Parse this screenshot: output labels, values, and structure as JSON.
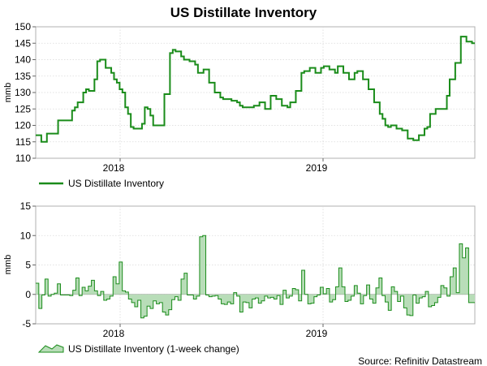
{
  "chart_data": [
    {
      "type": "line",
      "title": "US Distillate Inventory",
      "xlabel": "",
      "ylabel": "mmb",
      "ylim": [
        110,
        150
      ],
      "yticks": [
        110,
        115,
        120,
        125,
        130,
        135,
        140,
        145,
        150
      ],
      "x_tick_labels": [
        "2018",
        "2019"
      ],
      "grid": true,
      "legend": "bottom-left",
      "series": [
        {
          "name": "US Distillate Inventory",
          "color": "#1a8c1a",
          "values": [
            117,
            117,
            115,
            115,
            117.5,
            117.5,
            117.5,
            117.5,
            121.5,
            121.5,
            121.5,
            121.5,
            121.5,
            124.5,
            125.5,
            127,
            127,
            130,
            131,
            130.5,
            130.5,
            134,
            139.5,
            140,
            140,
            137.5,
            137.5,
            136,
            134,
            133,
            131,
            130,
            125.5,
            123.5,
            119.5,
            119,
            119,
            119,
            120.5,
            125.5,
            125,
            123,
            120,
            120,
            120,
            120,
            129.5,
            129.5,
            142,
            143,
            142.5,
            142.5,
            141,
            140,
            140,
            139.5,
            139.5,
            138.5,
            136,
            136,
            137,
            137,
            133,
            133,
            130,
            130,
            128.5,
            128,
            128,
            128,
            127.5,
            127.5,
            127,
            126,
            125.5,
            125.5,
            125.5,
            125.5,
            126,
            126,
            127,
            127,
            125,
            125,
            129,
            129,
            128,
            128,
            126,
            126,
            125.5,
            127,
            127,
            130.5,
            130.5,
            136,
            136.5,
            136.5,
            137.5,
            137.5,
            136,
            136,
            137.5,
            138,
            138,
            137,
            137,
            136,
            138,
            138,
            136,
            136,
            134,
            134,
            136,
            136.5,
            136.5,
            134,
            134,
            131,
            131,
            127,
            127,
            123.5,
            122,
            120,
            119.5,
            120,
            120,
            119,
            119,
            118.5,
            118.5,
            116,
            116,
            115.5,
            115.5,
            117,
            117,
            119,
            119.5,
            123.5,
            123.5,
            125,
            125,
            125,
            125,
            129,
            134,
            134,
            139,
            139,
            147,
            147,
            145.5,
            145.5,
            145
          ]
        }
      ]
    },
    {
      "type": "area",
      "title": "",
      "xlabel": "",
      "ylabel": "mmb",
      "ylim": [
        -5,
        15
      ],
      "yticks": [
        -5,
        0,
        5,
        10,
        15
      ],
      "x_tick_labels": [
        "2018",
        "2019"
      ],
      "grid": true,
      "legend": "bottom-left",
      "series": [
        {
          "name": "US Distillate Inventory (1-week change)",
          "color": "#1a8c1a",
          "values": [
            1.9,
            -2.4,
            -0.1,
            2.6,
            -0.3,
            0.0,
            0.2,
            1.8,
            -0.1,
            -0.1,
            -0.1,
            -0.2,
            0.7,
            2.8,
            -0.2,
            1.2,
            0.6,
            1.4,
            2.4,
            0.6,
            -0.2,
            0.5,
            -1.0,
            -0.8,
            -0.3,
            3.0,
            1.8,
            5.5,
            0.6,
            0.4,
            -0.8,
            -1.4,
            -2.1,
            -1.0,
            -4.0,
            -3.7,
            -2.0,
            -2.4,
            -1.1,
            -1.6,
            -1.4,
            -3.0,
            -3.5,
            -2.6,
            -0.9,
            -0.4,
            -1.0,
            2.6,
            3.6,
            -0.1,
            -0.1,
            -0.8,
            -0.3,
            9.8,
            10.0,
            -0.1,
            -0.4,
            -0.3,
            -0.2,
            -0.8,
            -1.6,
            -1.7,
            -1.3,
            -1.6,
            0.3,
            -0.3,
            -3.0,
            -1.3,
            -1.4,
            -2.3,
            -0.8,
            -0.6,
            -1.5,
            -1.1,
            -0.3,
            -0.6,
            -0.5,
            -0.8,
            -0.2,
            -1.7,
            0.7,
            -0.6,
            -0.3,
            1.0,
            0.8,
            -1.1,
            4.1,
            0.0,
            -1.6,
            -1.5,
            -0.4,
            -0.1,
            1.2,
            0.1,
            1.0,
            -1.3,
            -0.9,
            1.3,
            4.5,
            1.3,
            -1.2,
            -1.0,
            -0.3,
            1.5,
            0.2,
            -1.6,
            -0.2,
            1.6,
            -0.8,
            -1.5,
            1.1,
            2.8,
            -0.2,
            -1.3,
            -2.7,
            1.3,
            0.5,
            -1.2,
            -0.3,
            -2.3,
            -3.5,
            -3.6,
            -0.1,
            -1.5,
            -0.6,
            -0.4,
            0.5,
            -2.1,
            -1.9,
            -1.4,
            -0.5,
            1.5,
            1.1,
            -0.3,
            3.0,
            4.5,
            0.3,
            8.6,
            6.2,
            7.9,
            -1.4,
            -1.4
          ]
        }
      ]
    }
  ],
  "source": "Source: Refinitiv Datastream"
}
